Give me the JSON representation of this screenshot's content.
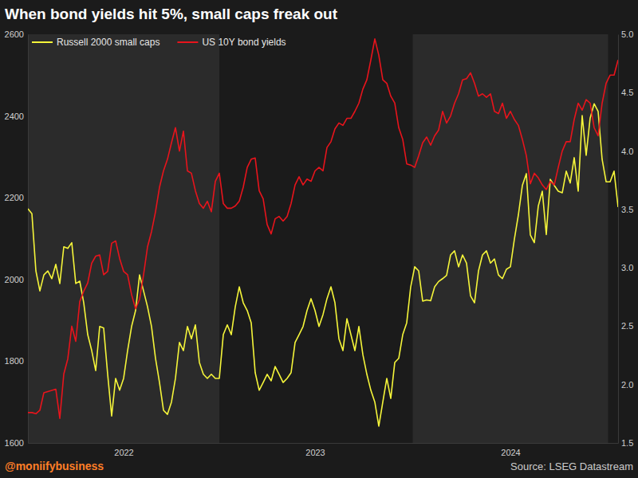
{
  "chart_data": {
    "type": "line",
    "title": "When bond yields hit 5%, small caps freak out",
    "credit": "@moniifybusiness",
    "source": "Source: LSEG Datastream",
    "legend": "top-left",
    "grid": false,
    "categories": [
      null,
      null,
      null,
      null,
      null,
      null,
      null,
      null,
      null,
      null,
      null,
      null,
      null,
      null,
      null,
      null,
      null,
      null,
      null,
      null,
      null,
      null,
      null,
      null,
      "2022",
      null,
      null,
      null,
      null,
      null,
      null,
      null,
      null,
      null,
      null,
      null,
      null,
      null,
      null,
      null,
      null,
      null,
      null,
      null,
      null,
      null,
      null,
      null,
      null,
      null,
      null,
      null,
      null,
      null,
      null,
      null,
      null,
      null,
      null,
      null,
      null,
      null,
      null,
      null,
      null,
      null,
      null,
      null,
      null,
      null,
      null,
      null,
      "2023",
      null,
      null,
      null,
      null,
      null,
      null,
      null,
      null,
      null,
      null,
      null,
      null,
      null,
      null,
      null,
      null,
      null,
      null,
      null,
      null,
      null,
      null,
      null,
      null,
      null,
      null,
      null,
      null,
      null,
      null,
      null,
      null,
      null,
      null,
      null,
      null,
      null,
      null,
      null,
      null,
      null,
      null,
      null,
      null,
      null,
      null,
      null,
      null,
      "2024",
      null,
      null,
      null,
      null,
      null,
      null,
      null,
      null,
      null,
      null,
      null,
      null,
      null,
      null,
      null,
      null,
      null,
      null,
      null,
      null,
      null,
      null,
      null,
      null,
      null,
      null,
      null
    ],
    "series": [
      {
        "name": "Russell 2000 small caps",
        "color": "#f5f53a",
        "values": [
          2173,
          2161,
          2021,
          1972,
          2011,
          2021,
          2002,
          2037,
          1990,
          2080,
          2076,
          2090,
          1990,
          1996,
          1943,
          1865,
          1826,
          1777,
          1885,
          1881,
          1768,
          1666,
          1758,
          1729,
          1758,
          1826,
          1885,
          1924,
          2011,
          1972,
          1933,
          1885,
          1807,
          1748,
          1680,
          1670,
          1700,
          1758,
          1846,
          1826,
          1885,
          1855,
          1889,
          1797,
          1768,
          1758,
          1768,
          1758,
          1758,
          1865,
          1889,
          1865,
          1933,
          1982,
          1943,
          1924,
          1894,
          1772,
          1729,
          1748,
          1768,
          1752,
          1787,
          1768,
          1748,
          1758,
          1772,
          1846,
          1865,
          1885,
          1924,
          1953,
          1924,
          1885,
          1914,
          1953,
          1982,
          1943,
          1855,
          1826,
          1904,
          1865,
          1826,
          1885,
          1816,
          1768,
          1729,
          1700,
          1641,
          1700,
          1758,
          1709,
          1797,
          1807,
          1865,
          1894,
          1982,
          2031,
          2021,
          1947,
          1950,
          1948,
          1982,
          1995,
          2002,
          2010,
          2060,
          2070,
          2031,
          2060,
          2040,
          1960,
          1943,
          2021,
          2060,
          2070,
          2040,
          2050,
          2011,
          2002,
          2025,
          2031,
          2099,
          2158,
          2230,
          2259,
          2109,
          2090,
          2180,
          2216,
          2110,
          2245,
          2230,
          2216,
          2212,
          2265,
          2236,
          2298,
          2216,
          2401,
          2304,
          2395,
          2430,
          2411,
          2294,
          2239,
          2239,
          2265,
          2177
        ]
      },
      {
        "name": "US 10Y bond yields",
        "color": "#e8141c",
        "axis": "y2",
        "values": [
          1.76,
          1.76,
          1.75,
          1.78,
          1.93,
          1.94,
          1.95,
          1.96,
          1.71,
          2.09,
          2.22,
          2.5,
          2.37,
          2.71,
          2.8,
          2.87,
          3.04,
          3.1,
          3.11,
          2.94,
          2.97,
          3.21,
          3.23,
          3.08,
          2.97,
          2.94,
          2.77,
          2.65,
          2.73,
          2.94,
          3.18,
          3.31,
          3.48,
          3.69,
          3.83,
          3.93,
          4.07,
          4.2,
          4.0,
          4.17,
          3.83,
          3.81,
          3.66,
          3.55,
          3.51,
          3.57,
          3.48,
          3.74,
          3.81,
          3.55,
          3.51,
          3.51,
          3.53,
          3.57,
          3.69,
          3.86,
          3.93,
          3.94,
          3.66,
          3.59,
          3.37,
          3.29,
          3.42,
          3.44,
          3.4,
          3.44,
          3.55,
          3.71,
          3.78,
          3.71,
          3.76,
          3.74,
          3.83,
          3.86,
          3.83,
          4.03,
          4.08,
          4.19,
          4.24,
          4.22,
          4.28,
          4.28,
          4.34,
          4.41,
          4.53,
          4.61,
          4.78,
          4.96,
          4.82,
          4.61,
          4.58,
          4.47,
          4.41,
          4.2,
          4.1,
          3.89,
          3.88,
          3.86,
          3.96,
          4.07,
          4.12,
          4.05,
          4.13,
          4.18,
          4.34,
          4.24,
          4.3,
          4.41,
          4.49,
          4.61,
          4.62,
          4.67,
          4.58,
          4.47,
          4.49,
          4.46,
          4.49,
          4.34,
          4.32,
          4.41,
          4.28,
          4.34,
          4.27,
          4.22,
          4.1,
          3.96,
          3.72,
          3.81,
          3.77,
          3.71,
          3.67,
          3.74,
          3.71,
          3.86,
          4.0,
          4.08,
          4.08,
          4.27,
          4.41,
          4.35,
          4.44,
          4.41,
          4.2,
          4.13,
          4.41,
          4.58,
          4.65,
          4.65,
          4.78
        ]
      }
    ],
    "ylim": [
      1600,
      2600
    ],
    "yticks": [
      1600,
      1800,
      2000,
      2200,
      2400,
      2600
    ],
    "y2lim": [
      1.5,
      5
    ],
    "y2ticks": [
      1.5,
      {
        "value": 2,
        "label": "2.0"
      },
      2.5,
      {
        "value": 3,
        "label": "3.0"
      },
      3.5,
      {
        "value": 4,
        "label": "4.0"
      },
      4.5,
      {
        "value": 5,
        "label": "5.0"
      }
    ]
  }
}
